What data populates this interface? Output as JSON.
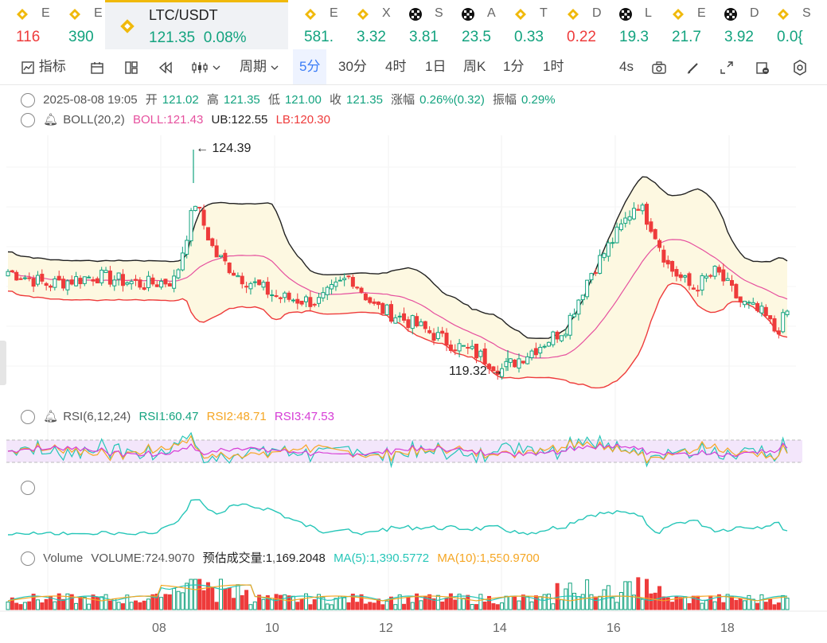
{
  "tickers": [
    {
      "sym": "E",
      "price": "116",
      "color": "r",
      "icon": "binance-icon"
    },
    {
      "sym": "E",
      "price": "390",
      "color": "g",
      "icon": "binance-icon"
    },
    {
      "sym": "LTC/USDT",
      "price": "121.35",
      "change": "0.08%",
      "color": "g",
      "icon": "binance-icon",
      "active": true
    },
    {
      "sym": "E",
      "price": "581.",
      "color": "g",
      "icon": "binance-icon"
    },
    {
      "sym": "X",
      "price": "3.32",
      "color": "g",
      "icon": "binance-icon"
    },
    {
      "sym": "S",
      "price": "3.81",
      "color": "g",
      "icon": "okx-icon"
    },
    {
      "sym": "A",
      "price": "23.5",
      "color": "g",
      "icon": "okx-icon"
    },
    {
      "sym": "T",
      "price": "0.33",
      "color": "g",
      "icon": "binance-icon"
    },
    {
      "sym": "D",
      "price": "0.22",
      "color": "r",
      "icon": "binance-icon"
    },
    {
      "sym": "L",
      "price": "19.3",
      "color": "g",
      "icon": "okx-icon"
    },
    {
      "sym": "E",
      "price": "21.7",
      "color": "g",
      "icon": "binance-icon"
    },
    {
      "sym": "D",
      "price": "3.92",
      "color": "g",
      "icon": "okx-icon"
    },
    {
      "sym": "S",
      "price": "0.0{",
      "color": "g",
      "icon": "binance-icon"
    }
  ],
  "toolbar": {
    "indicator_label": "指标",
    "period_label": "周期",
    "intervals": [
      "5分",
      "30分",
      "4时",
      "1日",
      "周K",
      "1分",
      "1时"
    ],
    "active_interval": "5分",
    "refresh": "4s"
  },
  "ohlc": {
    "datetime": "2025-08-08 19:05",
    "open_label": "开",
    "open": "121.02",
    "high_label": "高",
    "high": "121.35",
    "low_label": "低",
    "low": "121.00",
    "close_label": "收",
    "close": "121.35",
    "change_label": "涨幅",
    "change": "0.26%(0.32)",
    "amp_label": "振幅",
    "amp": "0.29%"
  },
  "boll": {
    "name": "BOLL(20,2)",
    "mid": "BOLL:121.43",
    "ub": "UB:122.55",
    "lb": "LB:120.30"
  },
  "annotations": {
    "high": "← 124.39",
    "low": "119.32 →"
  },
  "rsi": {
    "name": "RSI(6,12,24)",
    "rsi1": "RSI1:60.47",
    "rsi2": "RSI2:48.71",
    "rsi3": "RSI3:47.53"
  },
  "volume": {
    "name": "Volume",
    "value": "VOLUME:724.9070",
    "est": "预估成交量:1,169.2048",
    "ma5": "MA(5):1,390.5772",
    "ma10": "MA(10):1,550.9700"
  },
  "x_axis": [
    "08",
    "10",
    "12",
    "14",
    "16",
    "18"
  ],
  "chart_data": {
    "type": "candlestick",
    "y_marked_high": 124.39,
    "y_marked_low": 119.32,
    "last_close": 121.35,
    "boll": {
      "mid": 121.43,
      "ub": 122.55,
      "lb": 120.3
    },
    "rsi": {
      "rsi1": 60.47,
      "rsi2": 48.71,
      "rsi3": 47.53
    },
    "volume_last": 724.907,
    "x_ticks": [
      "08",
      "10",
      "12",
      "14",
      "16",
      "18"
    ]
  },
  "colors": {
    "up": "#13a37f",
    "down": "#ee3b3b",
    "boll_mid": "#e6509e",
    "boll_up": "#222222",
    "boll_low": "#ee3b3b",
    "band_fill": "#fdf8e1",
    "rsi_fill": "#f3e6fb"
  }
}
